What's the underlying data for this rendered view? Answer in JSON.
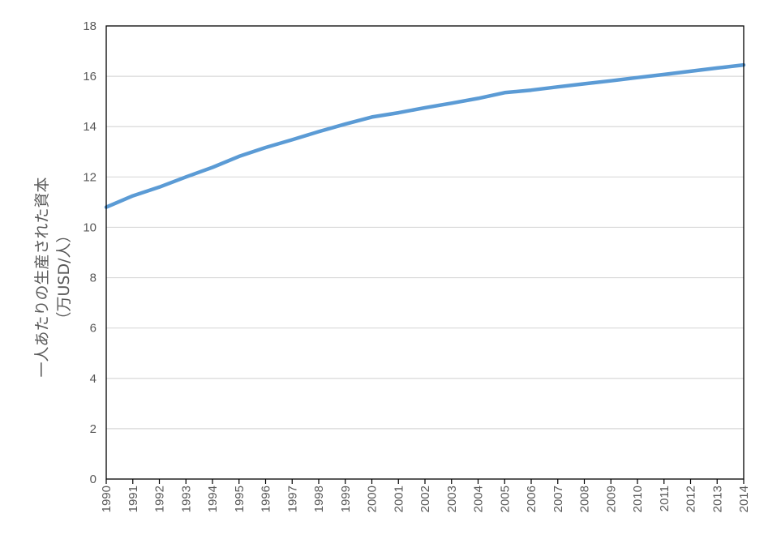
{
  "chart_data": {
    "type": "line",
    "title": "",
    "xlabel": "",
    "ylabel": "一人あたりの生産された資本",
    "ylabel_unit": "（万USD/人）",
    "x": [
      "1990",
      "1991",
      "1992",
      "1993",
      "1994",
      "1995",
      "1996",
      "1997",
      "1998",
      "1999",
      "2000",
      "2001",
      "2002",
      "2003",
      "2004",
      "2005",
      "2006",
      "2007",
      "2008",
      "2009",
      "2010",
      "2011",
      "2012",
      "2013",
      "2014"
    ],
    "series": [
      {
        "values": [
          10.8,
          11.25,
          11.6,
          12.0,
          12.38,
          12.82,
          13.17,
          13.48,
          13.8,
          14.1,
          14.38,
          14.55,
          14.75,
          14.93,
          15.12,
          15.35,
          15.45,
          15.58,
          15.7,
          15.82,
          15.95,
          16.07,
          16.2,
          16.33,
          16.45
        ],
        "color": "#5b9bd5"
      }
    ],
    "ylim": [
      0,
      18
    ],
    "yticks": [
      "0",
      "2",
      "4",
      "6",
      "8",
      "10",
      "12",
      "14",
      "16",
      "18"
    ],
    "grid": true,
    "legend": "none"
  }
}
